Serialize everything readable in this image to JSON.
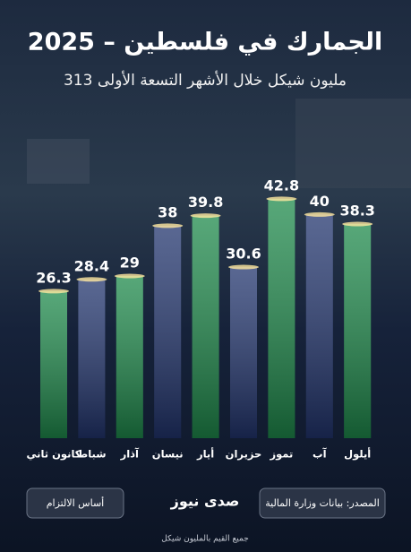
{
  "chart_data": {
    "type": "bar",
    "title": "الجمارك في فلسطين – 2025",
    "subtitle": "313 مليون شيكل خلال الأشهر التسعة الأولى",
    "categories": [
      "كانون ثاني",
      "شباط",
      "آذار",
      "نيسان",
      "أيار",
      "حزيران",
      "تموز",
      "آب",
      "أيلول"
    ],
    "values": [
      26.3,
      28.4,
      29,
      38,
      39.8,
      30.6,
      42.8,
      40,
      38.3
    ],
    "colors": [
      "#1f8a4c",
      "#22356e",
      "#1f8a4c",
      "#22356e",
      "#1f8a4c",
      "#22356e",
      "#1f8a4c",
      "#22356e",
      "#1f8a4c"
    ],
    "basis": "أساس الالتزام",
    "source": "المصدر: بيانات وزارة المالية",
    "logo": "صدى نيوز",
    "note": "جميع القيم بالمليون شيكل"
  }
}
